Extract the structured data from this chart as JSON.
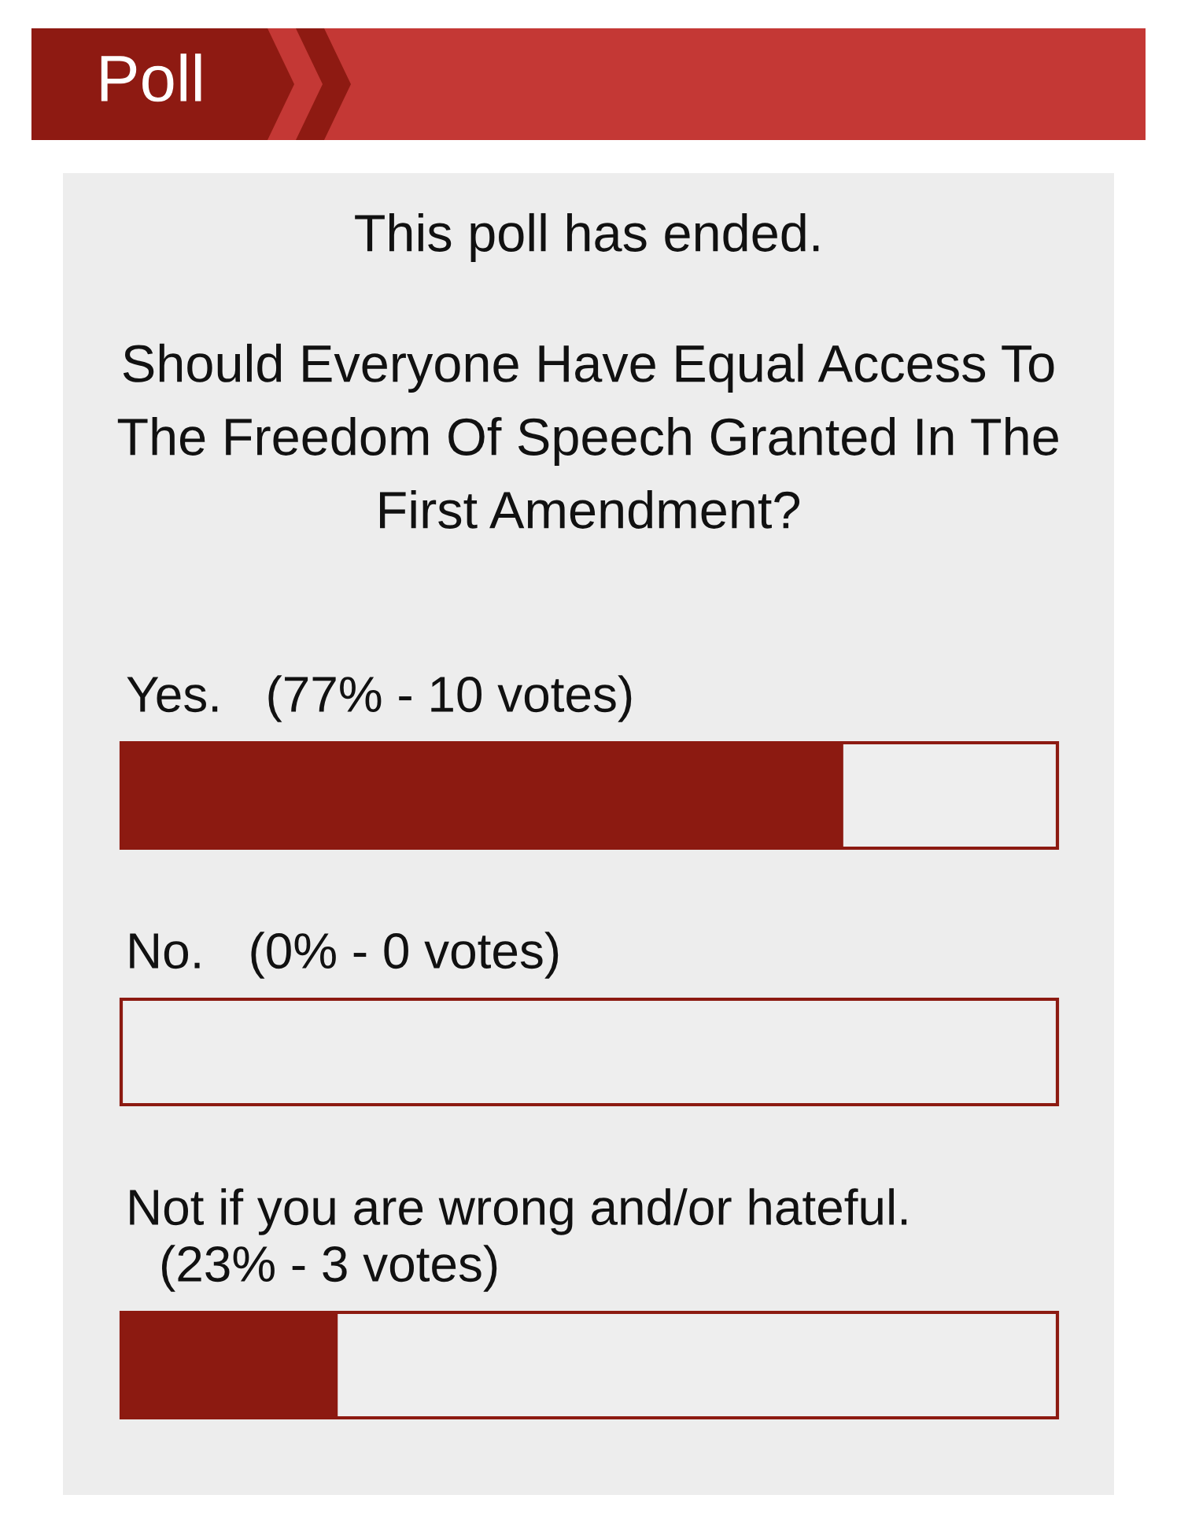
{
  "chart_data": {
    "type": "bar",
    "orientation": "horizontal",
    "title": "Should Everyone Have Equal Access To The Freedom Of Speech Granted In The First Amendment?",
    "annotations": [
      "Poll",
      "This poll has ended."
    ],
    "categories": [
      "Yes.",
      "No.",
      "Not if you are wrong and/or hateful."
    ],
    "values": [
      77,
      0,
      23
    ],
    "value_labels": [
      "(77% - 10 votes)",
      "(0% - 0 votes)",
      "(23% - 3 votes)"
    ],
    "color": "#8c1a11",
    "xlim": [
      0,
      100
    ],
    "tick_labels": false,
    "grid": false
  }
}
